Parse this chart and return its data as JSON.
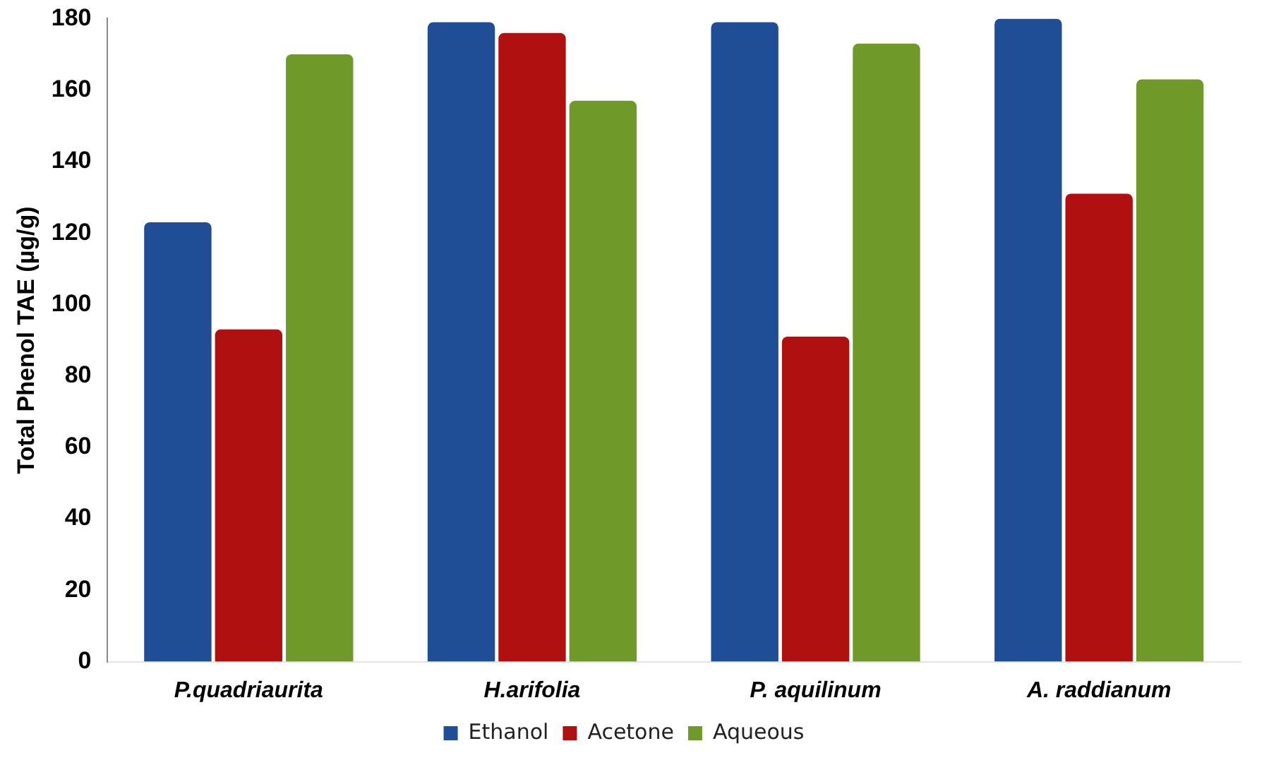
{
  "chart_data": {
    "type": "bar",
    "ylabel": "Total Phenol TAE (µg/g)",
    "categories": [
      "P.quadriaurita",
      "H.arifolia",
      "P. aquilinum",
      "A. raddianum"
    ],
    "series": [
      {
        "name": "Ethanol",
        "color": "#1f4e96",
        "values": [
          123,
          179,
          179,
          180
        ]
      },
      {
        "name": "Acetone",
        "color": "#b01010",
        "values": [
          93,
          176,
          91,
          131
        ]
      },
      {
        "name": "Aqueous",
        "color": "#6f9a2a",
        "values": [
          170,
          157,
          173,
          163
        ]
      }
    ],
    "ylim": [
      0,
      180
    ],
    "yticks": [
      0,
      20,
      40,
      60,
      80,
      100,
      120,
      140,
      160,
      180
    ],
    "grid": false,
    "legend": "bottom"
  }
}
